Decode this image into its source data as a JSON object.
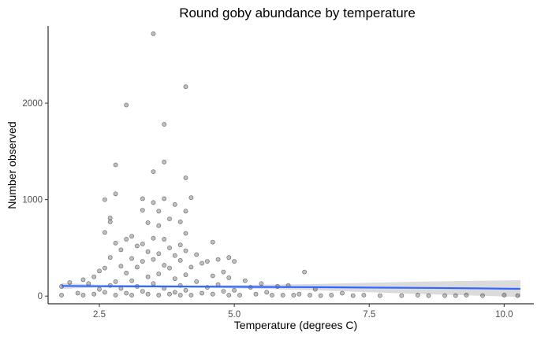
{
  "chart_data": {
    "type": "scatter",
    "title": "Round goby abundance by temperature",
    "xlabel": "Temperature (degrees C)",
    "ylabel": "Number observed",
    "xlim": [
      1.55,
      10.55
    ],
    "ylim": [
      -80,
      2800
    ],
    "xticks": [
      2.5,
      5.0,
      7.5,
      10.0
    ],
    "xtick_labels": [
      "2.5",
      "5.0",
      "7.5",
      "10.0"
    ],
    "yticks": [
      0,
      1000,
      2000
    ],
    "ytick_labels": [
      "0",
      "1000",
      "2000"
    ],
    "grid": false,
    "legend": "none",
    "colors": {
      "points": "#000000",
      "trend": "#3366FF",
      "band": "#BEBEBE"
    },
    "points": [
      [
        3.5,
        2720
      ],
      [
        4.1,
        2170
      ],
      [
        3.0,
        1980
      ],
      [
        3.7,
        1780
      ],
      [
        3.7,
        1390
      ],
      [
        2.8,
        1360
      ],
      [
        3.5,
        1290
      ],
      [
        4.1,
        1225
      ],
      [
        2.8,
        1060
      ],
      [
        4.2,
        1020
      ],
      [
        2.6,
        1000
      ],
      [
        3.3,
        1010
      ],
      [
        3.7,
        1010
      ],
      [
        3.5,
        970
      ],
      [
        3.9,
        950
      ],
      [
        3.3,
        890
      ],
      [
        4.1,
        880
      ],
      [
        3.6,
        880
      ],
      [
        2.7,
        810
      ],
      [
        3.8,
        800
      ],
      [
        2.7,
        770
      ],
      [
        4.0,
        770
      ],
      [
        3.4,
        760
      ],
      [
        3.6,
        730
      ],
      [
        2.6,
        660
      ],
      [
        4.1,
        650
      ],
      [
        3.1,
        620
      ],
      [
        3.5,
        600
      ],
      [
        3.0,
        590
      ],
      [
        3.7,
        590
      ],
      [
        4.6,
        560
      ],
      [
        2.8,
        550
      ],
      [
        3.3,
        540
      ],
      [
        4.0,
        530
      ],
      [
        3.2,
        520
      ],
      [
        3.8,
        500
      ],
      [
        2.9,
        480
      ],
      [
        4.1,
        470
      ],
      [
        3.4,
        460
      ],
      [
        3.6,
        440
      ],
      [
        4.3,
        430
      ],
      [
        3.9,
        420
      ],
      [
        2.7,
        400
      ],
      [
        3.1,
        390
      ],
      [
        3.5,
        380
      ],
      [
        4.0,
        370
      ],
      [
        3.3,
        360
      ],
      [
        4.5,
        360
      ],
      [
        4.9,
        400
      ],
      [
        4.7,
        380
      ],
      [
        5.0,
        360
      ],
      [
        4.4,
        340
      ],
      [
        3.7,
        320
      ],
      [
        2.9,
        310
      ],
      [
        3.2,
        300
      ],
      [
        4.2,
        300
      ],
      [
        3.8,
        290
      ],
      [
        2.6,
        290
      ],
      [
        6.3,
        250
      ],
      [
        4.8,
        250
      ],
      [
        2.5,
        260
      ],
      [
        3.0,
        240
      ],
      [
        3.6,
        230
      ],
      [
        4.1,
        220
      ],
      [
        4.6,
        210
      ],
      [
        3.4,
        200
      ],
      [
        2.4,
        200
      ],
      [
        4.9,
        190
      ],
      [
        3.9,
        180
      ],
      [
        2.2,
        170
      ],
      [
        5.2,
        160
      ],
      [
        3.1,
        160
      ],
      [
        2.8,
        150
      ],
      [
        4.3,
        150
      ],
      [
        1.95,
        140
      ],
      [
        2.3,
        130
      ],
      [
        5.5,
        130
      ],
      [
        3.5,
        130
      ],
      [
        4.7,
        120
      ],
      [
        2.7,
        110
      ],
      [
        4.0,
        110
      ],
      [
        6.0,
        110
      ],
      [
        5.8,
        100
      ],
      [
        1.8,
        100
      ],
      [
        3.2,
        100
      ],
      [
        4.5,
        90
      ],
      [
        5.3,
        90
      ],
      [
        2.9,
        80
      ],
      [
        3.7,
        80
      ],
      [
        6.5,
        70
      ],
      [
        2.5,
        70
      ],
      [
        4.1,
        60
      ],
      [
        5.0,
        60
      ],
      [
        3.3,
        50
      ],
      [
        4.8,
        50
      ],
      [
        2.6,
        40
      ],
      [
        3.9,
        40
      ],
      [
        5.6,
        40
      ],
      [
        2.1,
        30
      ],
      [
        3.0,
        30
      ],
      [
        4.4,
        30
      ],
      [
        6.2,
        20
      ],
      [
        7.0,
        30
      ],
      [
        1.8,
        10
      ],
      [
        2.2,
        10
      ],
      [
        2.4,
        20
      ],
      [
        2.8,
        10
      ],
      [
        3.1,
        10
      ],
      [
        3.4,
        20
      ],
      [
        3.6,
        10
      ],
      [
        3.8,
        20
      ],
      [
        4.0,
        10
      ],
      [
        4.2,
        10
      ],
      [
        4.6,
        20
      ],
      [
        4.9,
        10
      ],
      [
        5.1,
        10
      ],
      [
        5.4,
        20
      ],
      [
        5.7,
        10
      ],
      [
        5.9,
        10
      ],
      [
        6.1,
        10
      ],
      [
        6.4,
        10
      ],
      [
        6.6,
        5
      ],
      [
        6.8,
        10
      ],
      [
        7.2,
        5
      ],
      [
        7.7,
        5
      ],
      [
        8.1,
        5
      ],
      [
        8.6,
        5
      ],
      [
        9.1,
        5
      ],
      [
        9.6,
        5
      ],
      [
        10.25,
        5
      ],
      [
        10.0,
        10
      ],
      [
        7.4,
        10
      ],
      [
        8.4,
        10
      ],
      [
        8.9,
        5
      ],
      [
        9.3,
        10
      ]
    ],
    "trend": {
      "x": [
        1.8,
        2.5,
        3.5,
        4.5,
        5.5,
        6.5,
        7.5,
        8.5,
        9.5,
        10.3
      ],
      "y": [
        105,
        102,
        100,
        98,
        95,
        92,
        88,
        85,
        80,
        75
      ]
    },
    "band": {
      "x": [
        1.8,
        2.5,
        3.5,
        4.5,
        5.5,
        6.5,
        7.5,
        8.5,
        9.5,
        10.3
      ],
      "lower": [
        75,
        88,
        90,
        85,
        75,
        60,
        40,
        20,
        5,
        -10
      ],
      "upper": [
        135,
        118,
        112,
        112,
        118,
        125,
        138,
        150,
        158,
        165
      ]
    }
  }
}
